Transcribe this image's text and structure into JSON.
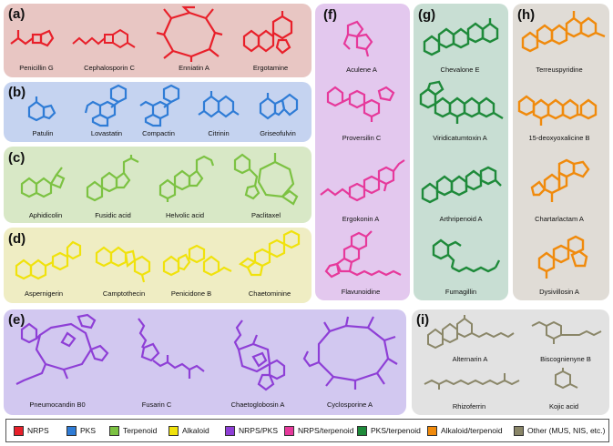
{
  "panels": [
    {
      "id": "a",
      "label": "(a)",
      "color": "#E8C6C3",
      "mol_color": "#E8202A",
      "compounds": [
        "Penicillin G",
        "Cephalosporin C",
        "Enniatin A",
        "Ergotamine"
      ]
    },
    {
      "id": "b",
      "label": "(b)",
      "color": "#C5D3F0",
      "mol_color": "#2F7CD6",
      "compounds": [
        "Patulin",
        "Lovastatin",
        "Compactin",
        "Citrinin",
        "Griseofulvin"
      ]
    },
    {
      "id": "c",
      "label": "(c)",
      "color": "#D8E8C6",
      "mol_color": "#7CC242",
      "compounds": [
        "Aphidicolin",
        "Fusidic acid",
        "Helvolic acid",
        "Paclitaxel"
      ]
    },
    {
      "id": "d",
      "label": "(d)",
      "color": "#EFEDC3",
      "mol_color": "#F0E20C",
      "compounds": [
        "Aspernigerin",
        "Camptothecin",
        "Penicidone B",
        "Chaetominine"
      ]
    },
    {
      "id": "e",
      "label": "(e)",
      "color": "#D2C8F0",
      "mol_color": "#8E3FD6",
      "compounds": [
        "Pneumocandin B0",
        "Fusarin C",
        "Chaetoglobosin A",
        "Cyclosporine A"
      ]
    },
    {
      "id": "f",
      "label": "(f)",
      "color": "#E3C8EE",
      "mol_color": "#E6399B",
      "compounds": [
        "Aculene A",
        "Proversilin C",
        "Ergokonin A",
        "Flavunoidine"
      ]
    },
    {
      "id": "g",
      "label": "(g)",
      "color": "#C8DED3",
      "mol_color": "#1E8A3A",
      "compounds": [
        "Chevalone E",
        "Viridicatumtoxin A",
        "Arthripenoid A",
        "Fumagillin"
      ]
    },
    {
      "id": "h",
      "label": "(h)",
      "color": "#E0DCD6",
      "mol_color": "#F08A0C",
      "compounds": [
        "Terreuspyridine",
        "15-deoxyoxalicine B",
        "Chartarlactam A",
        "Dysivillosin A"
      ]
    },
    {
      "id": "i",
      "label": "(i)",
      "color": "#E2E2E2",
      "mol_color": "#8A8668",
      "compounds": [
        "Alternarin A",
        "Biscognienyne B",
        "Rhizoferrin",
        "Kojic acid"
      ]
    }
  ],
  "legend": [
    {
      "label": "NRPS",
      "color": "#E8202A"
    },
    {
      "label": "PKS",
      "color": "#2F7CD6"
    },
    {
      "label": "Terpenoid",
      "color": "#7CC242"
    },
    {
      "label": "Alkaloid",
      "color": "#F0E20C"
    },
    {
      "label": "NRPS/PKS",
      "color": "#8E3FD6"
    },
    {
      "label": "NRPS/terpenoid",
      "color": "#E6399B"
    },
    {
      "label": "PKS/terpenoid",
      "color": "#1E8A3A"
    },
    {
      "label": "Alkaloid/terpenoid",
      "color": "#F08A0C"
    },
    {
      "label": "Other (MUS, NIS, etc.)",
      "color": "#8A8668"
    }
  ]
}
